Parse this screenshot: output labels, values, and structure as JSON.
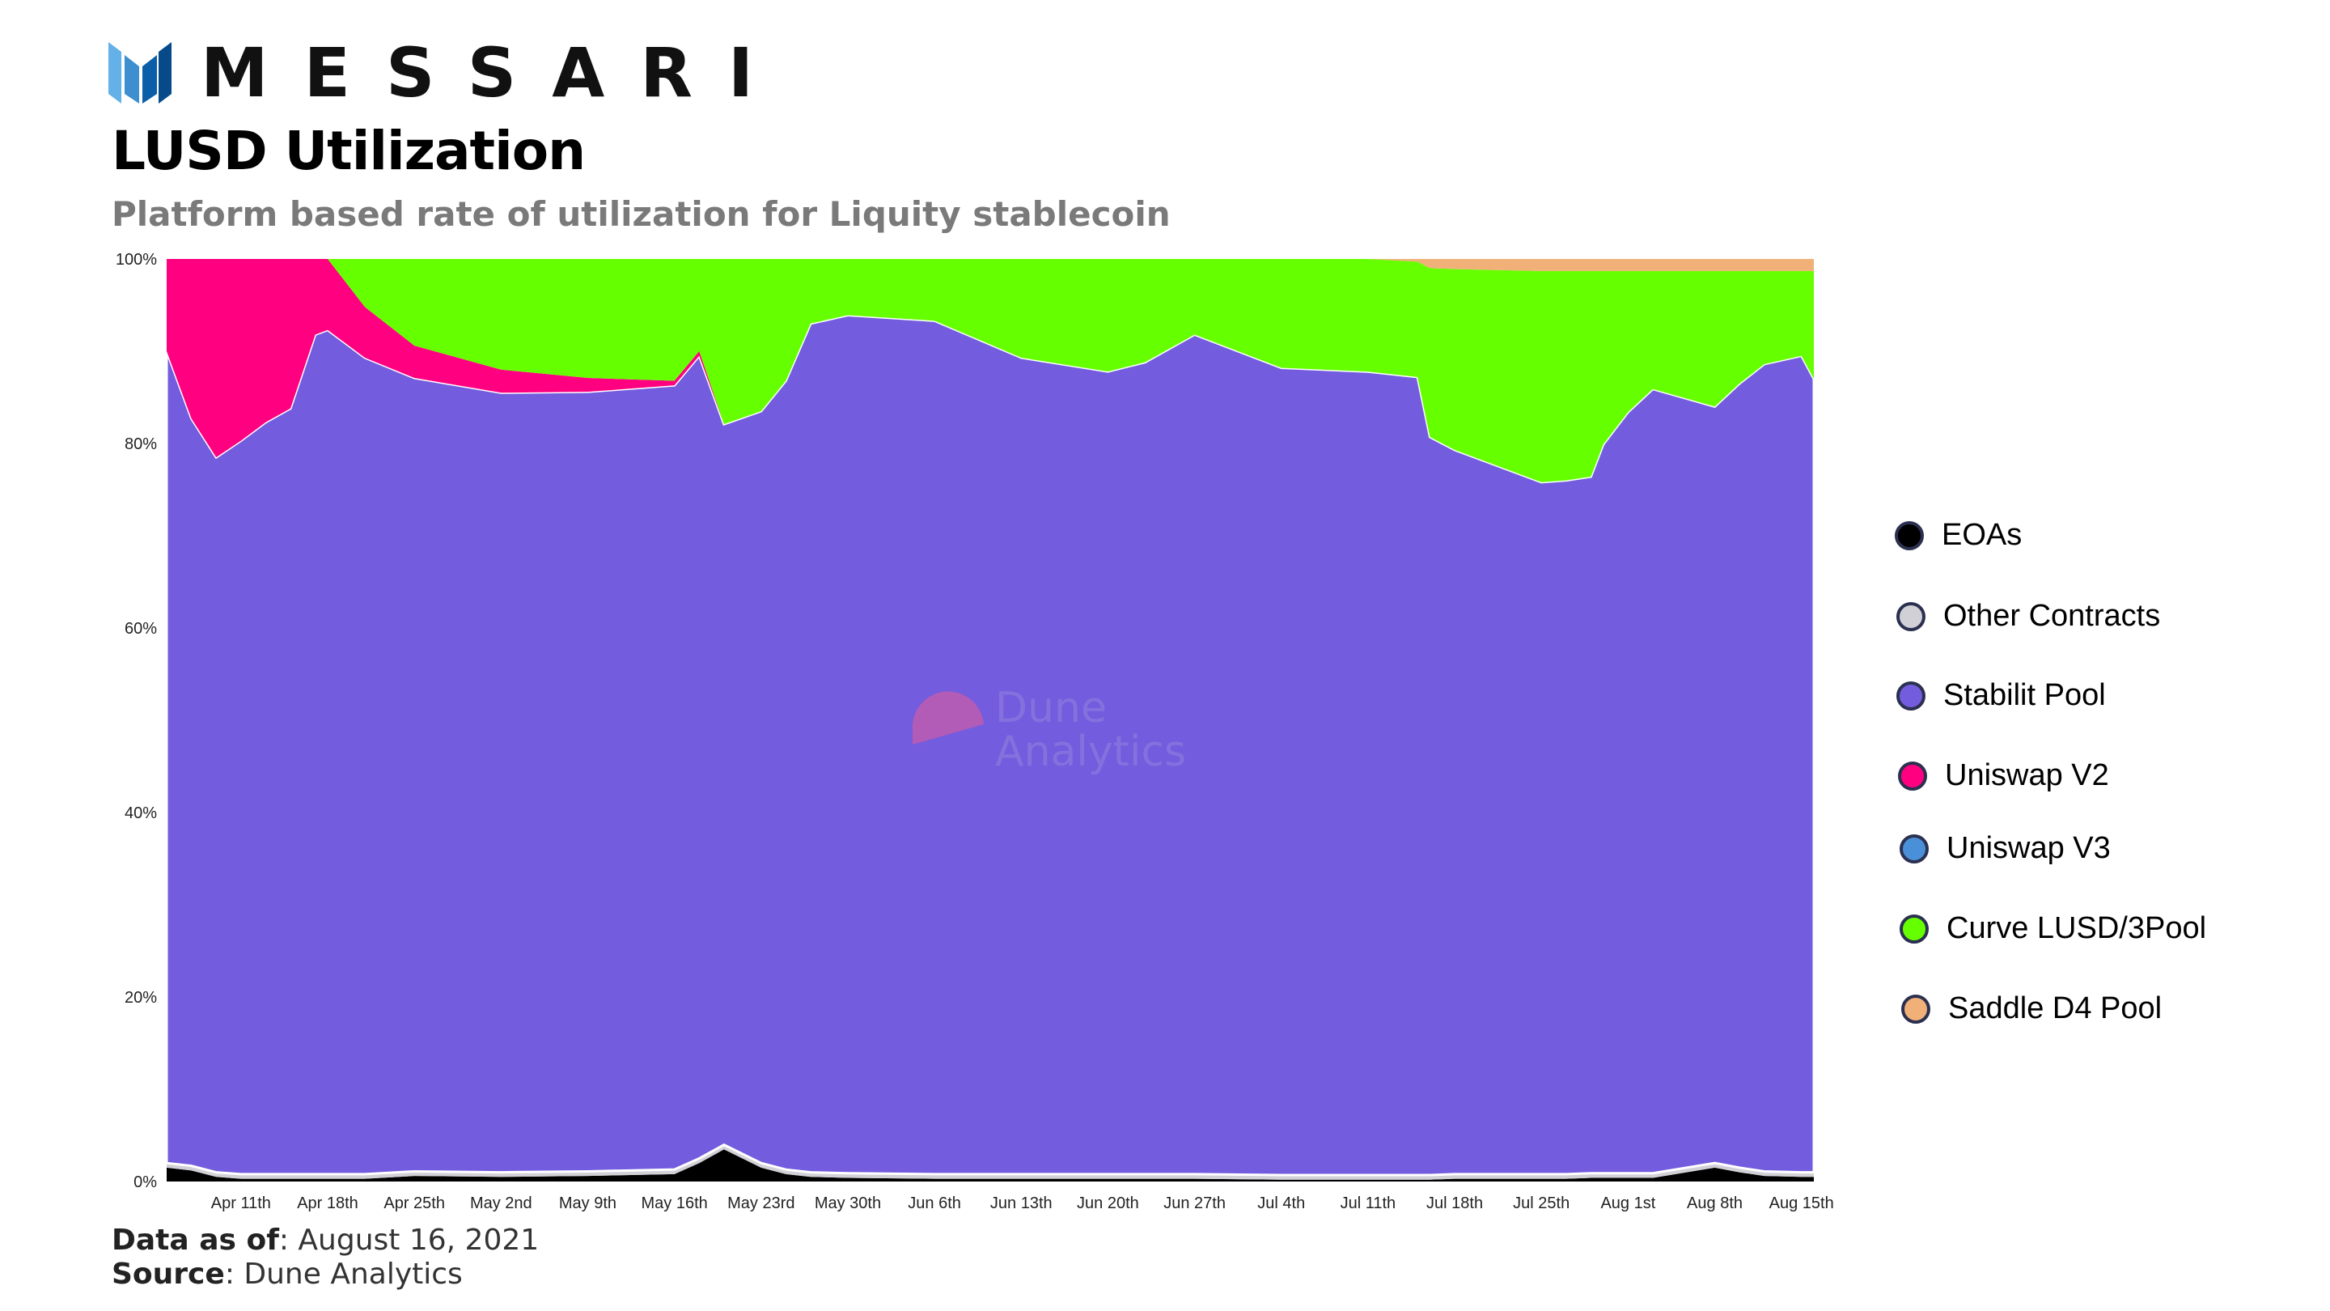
{
  "brand": {
    "name": "MESSARI"
  },
  "header": {
    "title": "LUSD Utilization",
    "subtitle": "Platform based rate of utilization for Liquity stablecoin"
  },
  "footer": {
    "data_label": "Data as of",
    "data_value": ": August 16, 2021",
    "source_label": "Source",
    "source_value": ": Dune Analytics"
  },
  "watermark": {
    "line1": "Dune",
    "line2": "Analytics"
  },
  "colors": {
    "eoas": "#000000",
    "other_contracts": "#d0d0d6",
    "stability_pool": "#735cdd",
    "uniswap_v2": "#ff0080",
    "uniswap_v3": "#4a90d9",
    "curve": "#66ff00",
    "saddle": "#f0b078",
    "brand_dark": "#0b5ea8",
    "brand_light": "#64b1e9"
  },
  "chart_data": {
    "type": "area",
    "stacked": true,
    "normalized": true,
    "title": "LUSD Utilization",
    "subtitle": "Platform based rate of utilization for Liquity stablecoin",
    "xlabel": "",
    "ylabel": "",
    "ylim": [
      0,
      100
    ],
    "y_ticks": [
      "0%",
      "20%",
      "40%",
      "60%",
      "80%",
      "100%"
    ],
    "x_ticks": [
      "Apr 11th",
      "Apr 18th",
      "Apr 25th",
      "May 2nd",
      "May 9th",
      "May 16th",
      "May 23rd",
      "May 30th",
      "Jun 6th",
      "Jun 13th",
      "Jun 20th",
      "Jun 27th",
      "Jul 4th",
      "Jul 11th",
      "Jul 18th",
      "Jul 25th",
      "Aug 1st",
      "Aug 8th",
      "Aug 15th"
    ],
    "x": [
      "2021-04-05",
      "2021-04-07",
      "2021-04-09",
      "2021-04-11",
      "2021-04-13",
      "2021-04-15",
      "2021-04-17",
      "2021-04-18",
      "2021-04-21",
      "2021-04-25",
      "2021-05-02",
      "2021-05-09",
      "2021-05-16",
      "2021-05-18",
      "2021-05-20",
      "2021-05-23",
      "2021-05-25",
      "2021-05-27",
      "2021-05-30",
      "2021-06-06",
      "2021-06-13",
      "2021-06-20",
      "2021-06-23",
      "2021-06-27",
      "2021-07-04",
      "2021-07-11",
      "2021-07-15",
      "2021-07-16",
      "2021-07-18",
      "2021-07-21",
      "2021-07-25",
      "2021-07-27",
      "2021-07-29",
      "2021-07-30",
      "2021-08-01",
      "2021-08-03",
      "2021-08-08",
      "2021-08-10",
      "2021-08-12",
      "2021-08-15",
      "2021-08-16"
    ],
    "legend_position": "right",
    "series": [
      {
        "name": "EOAs",
        "values": [
          1.5,
          1.2,
          0.5,
          0.3,
          0.3,
          0.3,
          0.3,
          0.3,
          0.3,
          0.6,
          0.5,
          0.6,
          0.8,
          2.0,
          3.5,
          1.5,
          0.8,
          0.5,
          0.4,
          0.3,
          0.3,
          0.3,
          0.3,
          0.3,
          0.2,
          0.2,
          0.2,
          0.2,
          0.3,
          0.3,
          0.3,
          0.3,
          0.4,
          0.4,
          0.4,
          0.4,
          1.5,
          1.0,
          0.6,
          0.5,
          0.5
        ]
      },
      {
        "name": "Other Contracts",
        "values": [
          0.5,
          0.5,
          0.5,
          0.5,
          0.5,
          0.5,
          0.5,
          0.5,
          0.5,
          0.5,
          0.5,
          0.5,
          0.5,
          0.5,
          0.5,
          0.5,
          0.5,
          0.5,
          0.5,
          0.5,
          0.5,
          0.5,
          0.5,
          0.5,
          0.5,
          0.5,
          0.5,
          0.5,
          0.5,
          0.5,
          0.5,
          0.5,
          0.5,
          0.5,
          0.5,
          0.5,
          0.5,
          0.5,
          0.5,
          0.5,
          0.5
        ]
      },
      {
        "name": "Stabilit Pool",
        "values": [
          88,
          81,
          77.5,
          79.5,
          81.5,
          83,
          91,
          91.5,
          88.5,
          86,
          84.5,
          84.5,
          85,
          87,
          78.5,
          81.5,
          85.5,
          92,
          93,
          92.5,
          88.5,
          87,
          88,
          91,
          87.5,
          87,
          86.5,
          80,
          78.5,
          77,
          75,
          75.2,
          75.5,
          79,
          82.5,
          85,
          82,
          85,
          87.5,
          88.5,
          86
        ]
      },
      {
        "name": "Uniswap V2",
        "values": [
          10,
          17.3,
          21.5,
          19.7,
          17.7,
          16.2,
          8.2,
          7.7,
          5.5,
          3.5,
          2.5,
          1.5,
          0.5,
          0.5,
          0,
          0,
          0,
          0,
          0,
          0,
          0,
          0,
          0,
          0,
          0,
          0,
          0,
          0,
          0,
          0,
          0,
          0,
          0,
          0,
          0,
          0,
          0,
          0,
          0,
          0,
          0
        ]
      },
      {
        "name": "Uniswap V3",
        "values": [
          0,
          0,
          0,
          0,
          0,
          0,
          0,
          0,
          0,
          0,
          0,
          0,
          0,
          0,
          0,
          0,
          0,
          0,
          0,
          0,
          0,
          0,
          0,
          0,
          0,
          0,
          0,
          0,
          0,
          0,
          0,
          0,
          0,
          0,
          0,
          0,
          0,
          0,
          0,
          0,
          0
        ]
      },
      {
        "name": "Curve LUSD/3Pool",
        "values": [
          0,
          0,
          0,
          0,
          0,
          0,
          0,
          0,
          5.2,
          9.4,
          12,
          12.9,
          13.2,
          10,
          18,
          16.5,
          13.2,
          7,
          6.1,
          6.7,
          10.7,
          12.2,
          11.2,
          8.2,
          11.8,
          12.2,
          12.5,
          18.3,
          19.6,
          21,
          22.9,
          22.7,
          22.3,
          18.8,
          15.3,
          12.8,
          14.7,
          12.2,
          10.1,
          9.2,
          11.7
        ]
      },
      {
        "name": "Saddle D4 Pool",
        "values": [
          0,
          0,
          0,
          0,
          0,
          0,
          0,
          0,
          0,
          0,
          0,
          0,
          0,
          0,
          0,
          0,
          0,
          0,
          0,
          0,
          0,
          0,
          0,
          0,
          0,
          0,
          0.3,
          1.0,
          1.1,
          1.2,
          1.3,
          1.3,
          1.3,
          1.3,
          1.3,
          1.3,
          1.3,
          1.3,
          1.3,
          1.3,
          1.3
        ]
      }
    ]
  }
}
